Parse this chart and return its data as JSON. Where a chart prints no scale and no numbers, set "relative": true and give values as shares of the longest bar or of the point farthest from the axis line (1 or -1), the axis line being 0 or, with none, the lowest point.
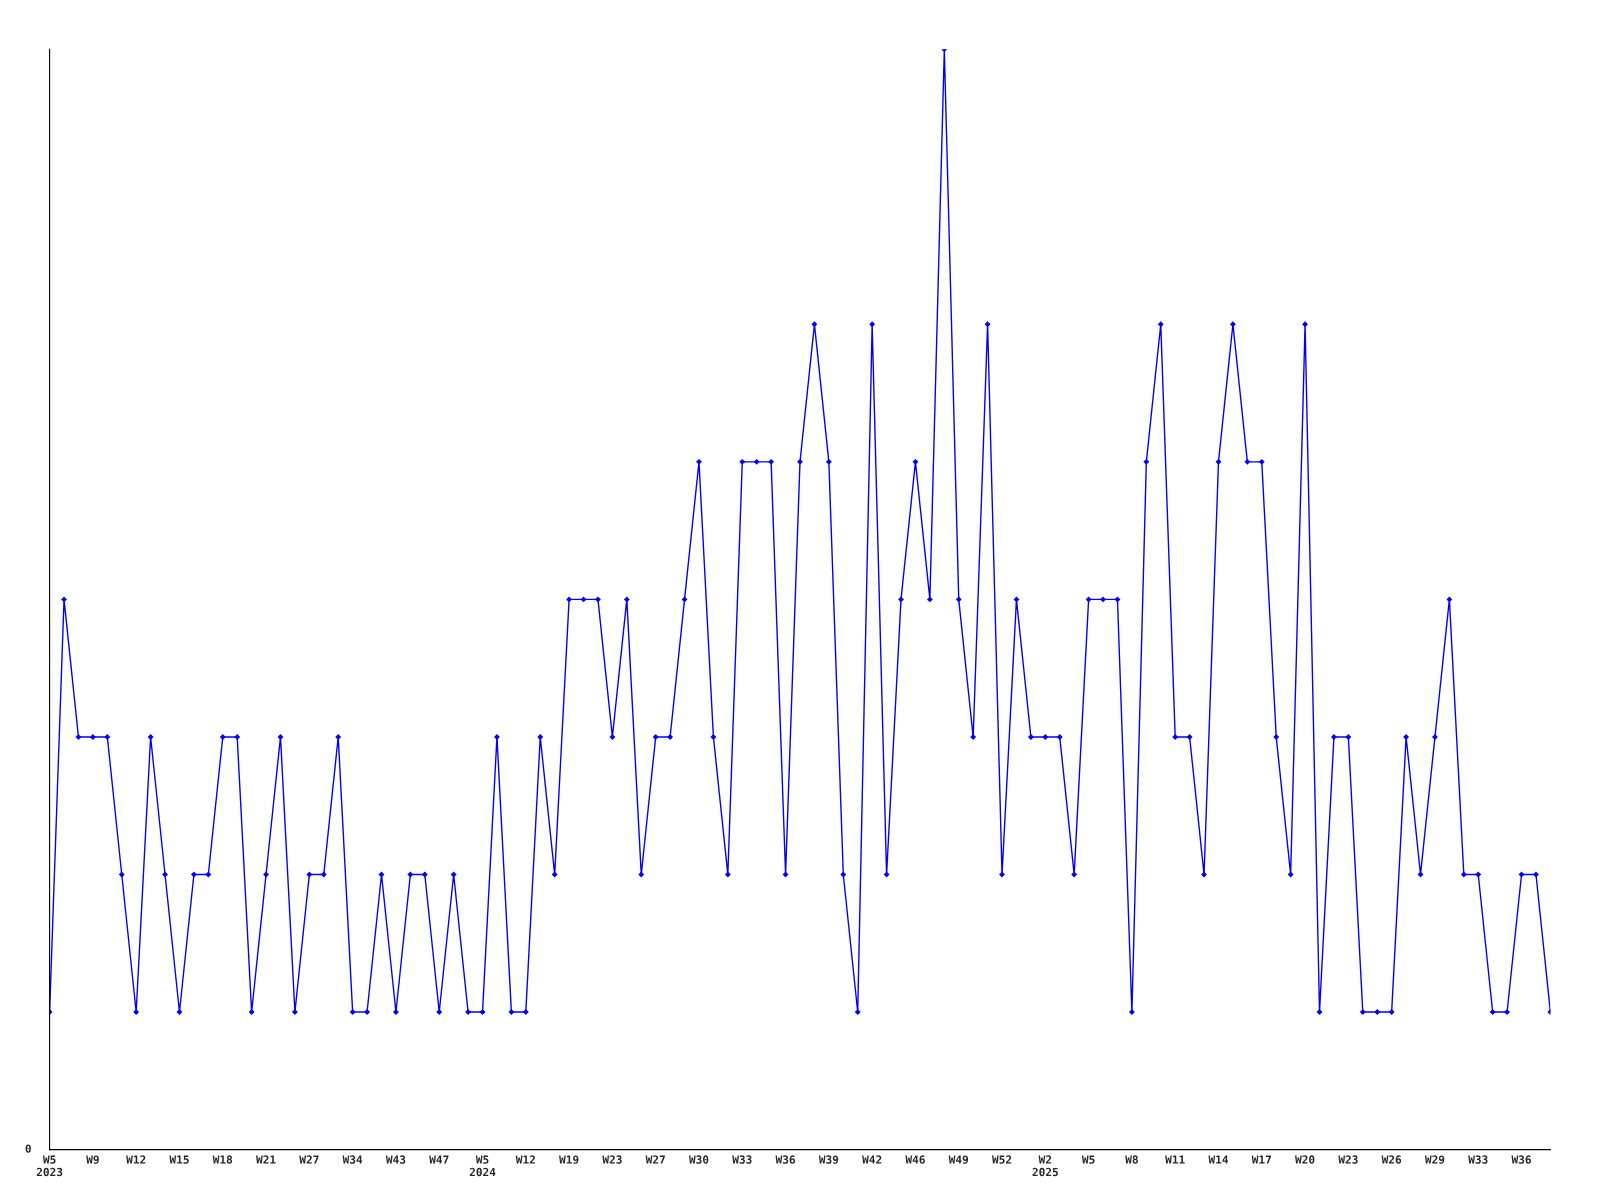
{
  "chart_data": {
    "type": "line",
    "relative": true,
    "color": "#0000ff",
    "marker": "diamond",
    "line_style": "solid",
    "grid": false,
    "legend": false,
    "annotations": [
      "0"
    ],
    "categories": [
      "W5\n2023",
      null,
      null,
      "W9",
      null,
      null,
      "W12",
      null,
      null,
      "W15",
      null,
      null,
      "W18",
      null,
      null,
      "W21",
      null,
      null,
      "W27",
      null,
      null,
      "W34",
      null,
      null,
      "W43",
      null,
      null,
      "W47",
      null,
      null,
      "W5\n2024",
      null,
      null,
      "W12",
      null,
      null,
      "W19",
      null,
      null,
      "W23",
      null,
      null,
      "W27",
      null,
      null,
      "W30",
      null,
      null,
      "W33",
      null,
      null,
      "W36",
      null,
      null,
      "W39",
      null,
      null,
      "W42",
      null,
      null,
      "W46",
      null,
      null,
      "W49",
      null,
      null,
      "W52",
      null,
      null,
      "W2\n2025",
      null,
      null,
      "W5",
      null,
      null,
      "W8",
      null,
      null,
      "W11",
      null,
      null,
      "W14",
      null,
      null,
      "W17",
      null,
      null,
      "W20",
      null,
      null,
      "W23",
      null,
      null,
      "W26",
      null,
      null,
      "W29",
      null,
      null,
      "W33",
      null,
      null,
      "W36",
      null,
      null
    ],
    "values": [
      0.125,
      0.5,
      0.375,
      0.375,
      0.375,
      0.25,
      0.125,
      0.375,
      0.25,
      0.125,
      0.25,
      0.25,
      0.375,
      0.375,
      0.125,
      0.25,
      0.375,
      0.125,
      0.25,
      0.25,
      0.375,
      0.125,
      0.125,
      0.25,
      0.125,
      0.25,
      0.25,
      0.125,
      0.25,
      0.125,
      0.125,
      0.375,
      0.125,
      0.125,
      0.375,
      0.25,
      0.5,
      0.5,
      0.5,
      0.375,
      0.5,
      0.25,
      0.375,
      0.375,
      0.5,
      0.625,
      0.375,
      0.25,
      0.625,
      0.625,
      0.625,
      0.25,
      0.625,
      0.75,
      0.625,
      0.25,
      0.125,
      0.75,
      0.25,
      0.5,
      0.625,
      0.5,
      1,
      0.5,
      0.375,
      0.75,
      0.25,
      0.5,
      0.375,
      0.375,
      0.375,
      0.25,
      0.5,
      0.5,
      0.5,
      0.125,
      0.625,
      0.75,
      0.375,
      0.375,
      0.25,
      0.625,
      0.75,
      0.625,
      0.625,
      0.375,
      0.25,
      0.75,
      0.125,
      0.375,
      0.375,
      0.125,
      0.125,
      0.125,
      0.375,
      0.25,
      0.375,
      0.5,
      0.25,
      0.25,
      0.125,
      0.125,
      0.25,
      0.25,
      0.125
    ]
  }
}
